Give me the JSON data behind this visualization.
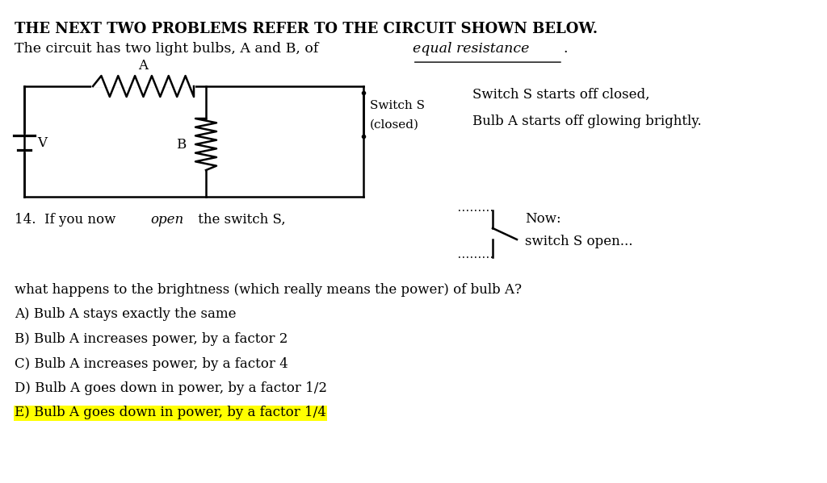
{
  "bg_color": "#ffffff",
  "title_line1": "THE NEXT TWO PROBLEMS REFER TO THE CIRCUIT SHOWN BELOW.",
  "title_line2_normal": "The circuit has two light bulbs, A and B, of ",
  "title_line2_italic_underline": "equal resistance",
  "title_line2_end": ".",
  "switch_text_line1": "Switch S starts off closed,",
  "switch_text_line2": "Bulb A starts off glowing brightly.",
  "switch_label_line1": "Switch S",
  "switch_label_line2": "(closed)",
  "question_num": "14.  If you now ",
  "question_text_italic": "open",
  "question_text_normal2": " the switch S,",
  "now_label": "Now:",
  "now_sub": "switch S open...",
  "q_text": "what happens to the brightness (which really means the power) of bulb A?",
  "options": [
    "A) Bulb A stays exactly the same",
    "B) Bulb A increases power, by a factor 2",
    "C) Bulb A increases power, by a factor 4",
    "D) Bulb A goes down in power, by a factor 1/2",
    "E) Bulb A goes down in power, by a factor 1/4"
  ],
  "highlighted_option_idx": 4,
  "highlight_color": "#ffff00",
  "font_size_title": 13,
  "font_size_body": 12,
  "text_color": "#000000"
}
